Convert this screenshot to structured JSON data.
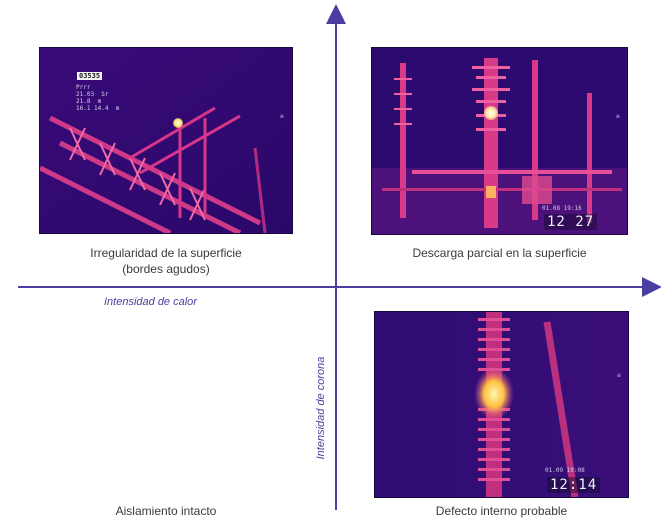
{
  "axes": {
    "horizontal_label": "Intensidad de calor",
    "vertical_label": "Intensidad de corona"
  },
  "quadrants": [
    {
      "id": "top-left",
      "caption_line1": "Irregularidad de la superficie",
      "caption_line2": "(bordes agudos)",
      "overlay_tag": "03535",
      "overlay_readout": "Prrr\n21.03  Sr\n21.8  m\n16.1 14.4  m",
      "overlay_edge_mark": "≡"
    },
    {
      "id": "top-right",
      "caption_line1": "Descarga parcial en la superficie",
      "overlay_time": "12 27",
      "overlay_date": "01.08 19:16",
      "overlay_edge_mark": "≡"
    },
    {
      "id": "bottom-left",
      "caption_line1": "Aislamiento intacto"
    },
    {
      "id": "bottom-right",
      "caption_line1": "Defecto interno probable",
      "overlay_time": "12:14",
      "overlay_date": "01.09 19:08",
      "overlay_edge_mark": "≡"
    }
  ],
  "colors": {
    "axis": "#4a3fa0",
    "thermal_cold": "#2a0a6e",
    "thermal_warm": "#c8246a",
    "thermal_hot": "#ffe070"
  }
}
